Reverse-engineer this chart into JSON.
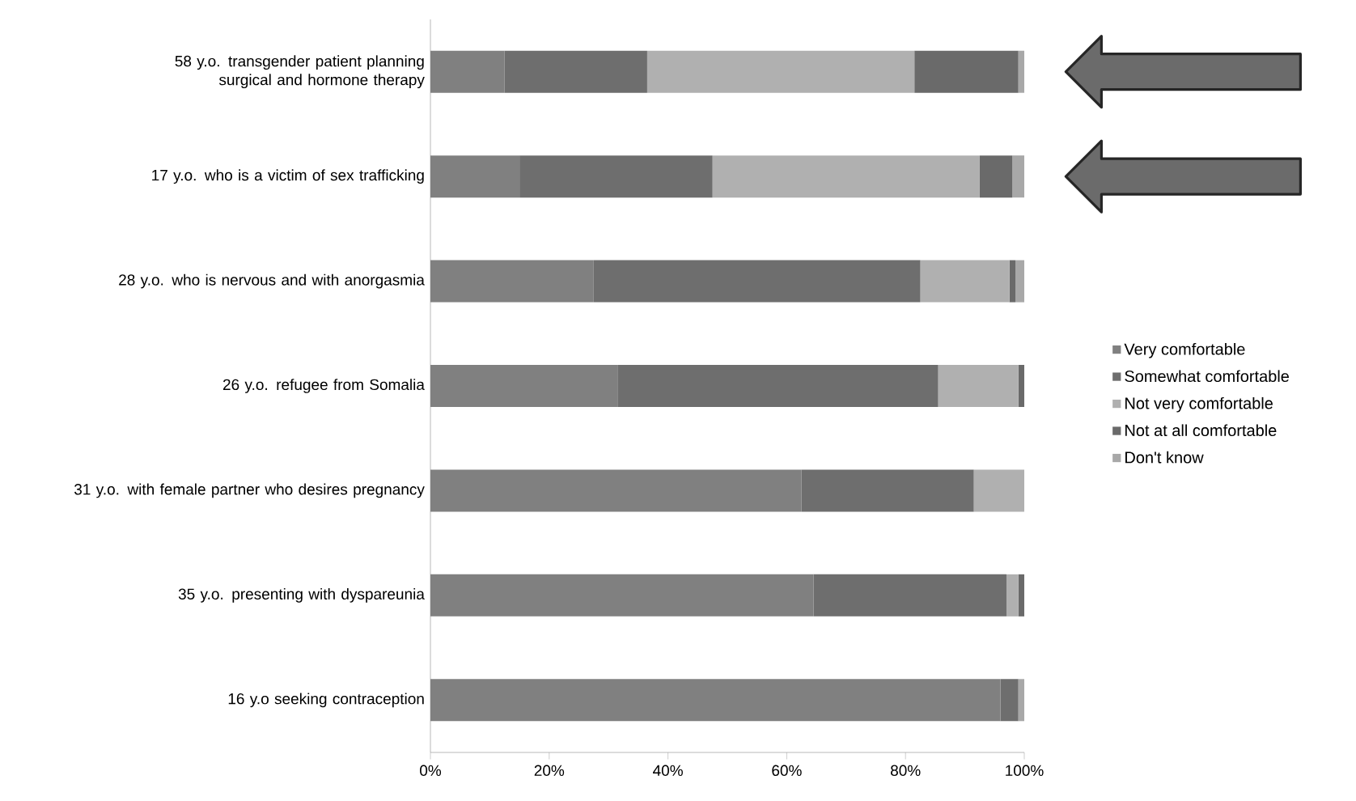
{
  "chart_data": {
    "type": "bar",
    "orientation": "horizontal",
    "stacked": true,
    "legend": "right",
    "categories": [
      "58 y.o. transgender patient planning surgical and hormone therapy",
      "17 y.o. who is a victim of sex trafficking",
      "28 y.o. who is nervous and with anorgasmia",
      "26 y.o. refugee from Somalia",
      "31 y.o. with female partner who desires pregnancy",
      "35 y.o. presenting with dyspareunia",
      "16 y.o seeking contraception"
    ],
    "series": [
      {
        "name": "Very comfortable",
        "color": "#808080",
        "values": [
          12.5,
          15,
          27.5,
          31.5,
          62.5,
          64.5,
          96
        ]
      },
      {
        "name": "Somewhat comfortable",
        "color": "#6e6e6e",
        "values": [
          24,
          32.5,
          55,
          54,
          29,
          32.5,
          3
        ]
      },
      {
        "name": "Not very comfortable",
        "color": "#b0b0b0",
        "values": [
          45,
          45,
          15,
          13.5,
          8.5,
          2,
          0
        ]
      },
      {
        "name": "Not at all comfortable",
        "color": "#6a6a6a",
        "values": [
          17.5,
          5.5,
          1,
          1,
          0,
          1,
          0
        ]
      },
      {
        "name": "Don't know",
        "color": "#a8a8a8",
        "values": [
          1,
          2,
          1.5,
          0,
          0,
          0,
          1
        ]
      }
    ],
    "xlim": [
      0,
      100
    ],
    "xticks": [
      {
        "value": 0,
        "label": "0%"
      },
      {
        "value": 20,
        "label": "20%"
      },
      {
        "value": 40,
        "label": "40%"
      },
      {
        "value": 60,
        "label": "60%"
      },
      {
        "value": 80,
        "label": "80%"
      },
      {
        "value": 100,
        "label": "100%"
      }
    ]
  }
}
